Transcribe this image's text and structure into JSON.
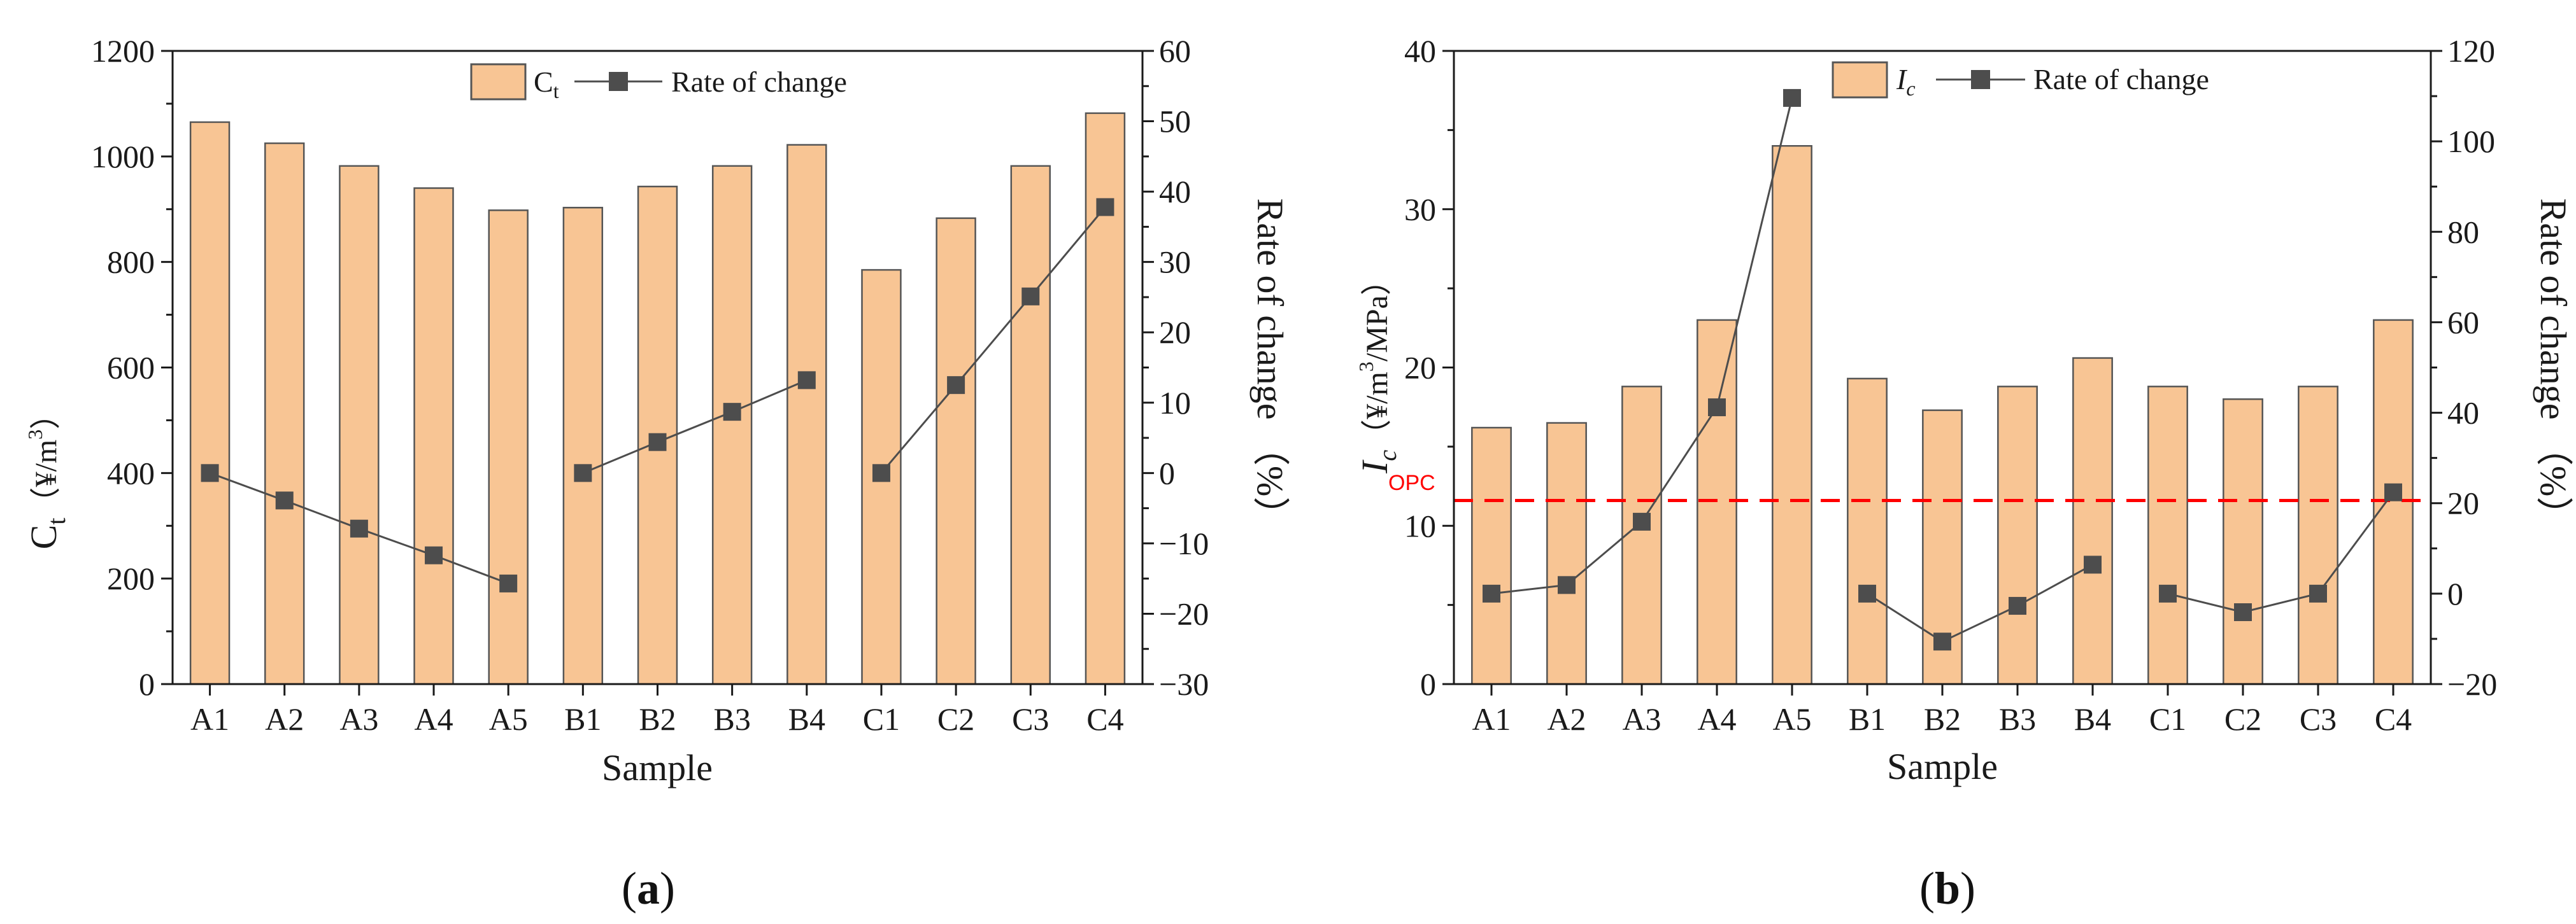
{
  "chart_data": [
    {
      "type": "bar+line",
      "panel_label": "a",
      "categories": [
        "A1",
        "A2",
        "A3",
        "A4",
        "A5",
        "B1",
        "B2",
        "B3",
        "B4",
        "C1",
        "C2",
        "C3",
        "C4"
      ],
      "xlabel": "Sample",
      "y_left": {
        "label_main": "C",
        "label_sub": "t",
        "label_unit_pre": "（¥/m",
        "label_sup": "3",
        "label_unit_post": "）",
        "range": [
          0,
          1200
        ],
        "ticks": [
          0,
          200,
          400,
          600,
          800,
          1000,
          1200
        ]
      },
      "y_right": {
        "label": "Rate of change （%）",
        "range": [
          -30,
          60
        ],
        "ticks": [
          -30,
          -20,
          -10,
          0,
          10,
          20,
          30,
          40,
          50,
          60
        ]
      },
      "legend": [
        {
          "kind": "bar",
          "name_main": "C",
          "name_sub": "t"
        },
        {
          "kind": "line",
          "name": "Rate of change"
        }
      ],
      "bars": {
        "name": "Ct",
        "values": [
          1065,
          1025,
          982,
          940,
          898,
          903,
          943,
          982,
          1022,
          785,
          883,
          982,
          1082
        ]
      },
      "lines": [
        {
          "group": "A",
          "categories": [
            "A1",
            "A2",
            "A3",
            "A4",
            "A5"
          ],
          "values": [
            0,
            -3.9,
            -7.9,
            -11.7,
            -15.7
          ]
        },
        {
          "group": "B",
          "categories": [
            "B1",
            "B2",
            "B3",
            "B4"
          ],
          "values": [
            0,
            4.4,
            8.7,
            13.2
          ]
        },
        {
          "group": "C",
          "categories": [
            "C1",
            "C2",
            "C3",
            "C4"
          ],
          "values": [
            0,
            12.5,
            25.1,
            37.8
          ]
        }
      ]
    },
    {
      "type": "bar+line",
      "panel_label": "b",
      "categories": [
        "A1",
        "A2",
        "A3",
        "A4",
        "A5",
        "B1",
        "B2",
        "B3",
        "B4",
        "C1",
        "C2",
        "C3",
        "C4"
      ],
      "xlabel": "Sample",
      "y_left": {
        "label_main": "I",
        "label_sub": "c",
        "label_unit_pre": "（¥/m",
        "label_sup": "3",
        "label_unit_post": "/MPa）",
        "range": [
          0,
          40
        ],
        "ticks": [
          0,
          10,
          20,
          30,
          40
        ]
      },
      "y_right": {
        "label": "Rate of change （%）",
        "range": [
          -20,
          120
        ],
        "ticks": [
          -20,
          0,
          20,
          40,
          60,
          80,
          100,
          120
        ]
      },
      "legend": [
        {
          "kind": "bar",
          "name_main": "I",
          "name_sub": "c"
        },
        {
          "kind": "line",
          "name": "Rate of change"
        }
      ],
      "bars": {
        "name": "Ic",
        "values": [
          16.2,
          16.5,
          18.8,
          23.0,
          34.0,
          19.3,
          17.3,
          18.8,
          20.6,
          18.8,
          18.0,
          18.8,
          23.0
        ]
      },
      "lines": [
        {
          "group": "A",
          "categories": [
            "A1",
            "A2",
            "A3",
            "A4",
            "A5"
          ],
          "values": [
            0,
            1.9,
            15.9,
            41.2,
            109.6
          ]
        },
        {
          "group": "B",
          "categories": [
            "B1",
            "B2",
            "B3",
            "B4"
          ],
          "values": [
            0,
            -10.6,
            -2.7,
            6.4
          ]
        },
        {
          "group": "C",
          "categories": [
            "C1",
            "C2",
            "C3",
            "C4"
          ],
          "values": [
            0,
            -4.1,
            0,
            22.4
          ]
        }
      ],
      "reference_line": {
        "label_main": "I",
        "label_sub": "c-OPC",
        "label_sub_display": "OPC",
        "value": 11.6,
        "color": "#ff0000",
        "style": "dashed"
      }
    }
  ],
  "colors": {
    "bar_fill": "#f8c594",
    "bar_stroke": "#555555",
    "line": "#4d4d4d",
    "marker": "#4d4d4d",
    "axis": "#1a1a1a"
  }
}
